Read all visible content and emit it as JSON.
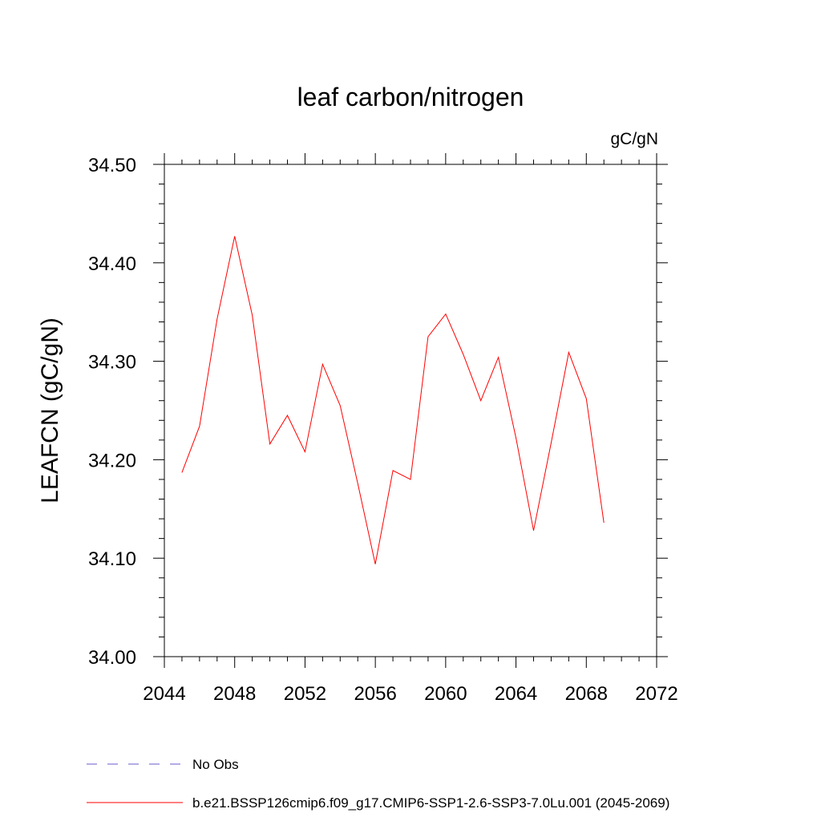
{
  "chart_data": {
    "type": "line",
    "title": "leaf carbon/nitrogen",
    "units": "gC/gN",
    "ylabel": "LEAFCN  (gC/gN)",
    "xlabel": "",
    "xlim": [
      2044,
      2072
    ],
    "ylim": [
      34.0,
      34.5
    ],
    "x_ticks": [
      2044,
      2048,
      2052,
      2056,
      2060,
      2064,
      2068,
      2072
    ],
    "x_tick_labels": [
      "2044",
      "2048",
      "2052",
      "2056",
      "2060",
      "2064",
      "2068",
      "2072"
    ],
    "y_ticks": [
      34.0,
      34.1,
      34.2,
      34.3,
      34.4,
      34.5
    ],
    "y_tick_labels": [
      "34.00",
      "34.10",
      "34.20",
      "34.30",
      "34.40",
      "34.50"
    ],
    "grid": false,
    "legend_position": "bottom-left",
    "series": [
      {
        "name": "b.e21.BSSP126cmip6.f09_g17.CMIP6-SSP1-2.6-SSP3-7.0Lu.001 (2045-2069)",
        "color": "#ff0000",
        "style": "solid",
        "x": [
          2045,
          2046,
          2047,
          2048,
          2049,
          2050,
          2051,
          2052,
          2053,
          2054,
          2055,
          2056,
          2057,
          2058,
          2059,
          2060,
          2061,
          2062,
          2063,
          2064,
          2065,
          2066,
          2067,
          2068,
          2069
        ],
        "y": [
          34.187,
          34.234,
          34.343,
          34.427,
          34.347,
          34.216,
          34.245,
          34.208,
          34.297,
          34.255,
          34.176,
          34.094,
          34.189,
          34.18,
          34.325,
          34.348,
          34.307,
          34.26,
          34.304,
          34.222,
          34.128,
          34.217,
          34.309,
          34.262,
          34.136
        ]
      }
    ],
    "legend": [
      {
        "label": "No Obs",
        "color": "#6a5acd",
        "style": "dashed"
      },
      {
        "label": "b.e21.BSSP126cmip6.f09_g17.CMIP6-SSP1-2.6-SSP3-7.0Lu.001 (2045-2069)",
        "color": "#ff0000",
        "style": "solid"
      }
    ]
  }
}
